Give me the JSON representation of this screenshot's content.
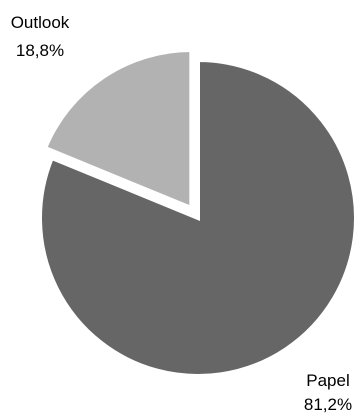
{
  "chart_data": {
    "type": "pie",
    "exploded": "Outlook",
    "slices": [
      {
        "name": "Papel",
        "label": "Papel",
        "value_text": "81,2%",
        "value": 81.2,
        "color": "#666666"
      },
      {
        "name": "Outlook",
        "label": "Outlook",
        "value_text": "18,8%",
        "value": 18.8,
        "color": "#b2b2b2"
      }
    ]
  }
}
